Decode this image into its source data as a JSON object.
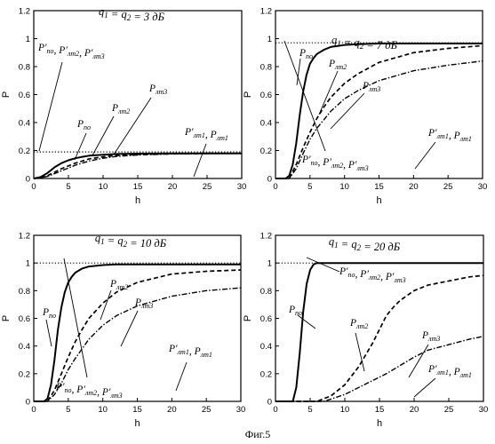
{
  "caption": "Фиг.5",
  "chart_data": [
    {
      "type": "line",
      "title": "q1 = q2 = 3 дБ",
      "xlabel": "h",
      "ylabel": "P",
      "xlim": [
        0,
        30
      ],
      "ylim": [
        0,
        1.2
      ],
      "xticks": [
        "0",
        "5",
        "10",
        "15",
        "20",
        "25",
        "30"
      ],
      "yticks": [
        "0",
        "0.2",
        "0.4",
        "0.6",
        "0.8",
        "1",
        "1.2"
      ],
      "series": [
        {
          "style": "solid",
          "x": [
            0,
            1,
            2,
            3,
            4,
            5,
            6,
            7,
            8,
            10,
            12,
            15,
            20,
            25,
            30
          ],
          "y": [
            0,
            0.01,
            0.04,
            0.08,
            0.11,
            0.13,
            0.145,
            0.155,
            0.163,
            0.17,
            0.175,
            0.178,
            0.18,
            0.18,
            0.18
          ]
        },
        {
          "style": "dashed",
          "x": [
            0,
            1,
            2,
            3,
            4,
            5,
            6,
            7,
            8,
            10,
            12,
            15,
            20,
            25,
            30
          ],
          "y": [
            0,
            0.005,
            0.02,
            0.045,
            0.07,
            0.09,
            0.11,
            0.125,
            0.14,
            0.155,
            0.165,
            0.172,
            0.177,
            0.18,
            0.18
          ]
        },
        {
          "style": "dashdot",
          "x": [
            0,
            1,
            2,
            3,
            4,
            5,
            6,
            7,
            8,
            10,
            12,
            15,
            20,
            25,
            30
          ],
          "y": [
            0,
            0.005,
            0.015,
            0.035,
            0.055,
            0.075,
            0.095,
            0.11,
            0.125,
            0.145,
            0.158,
            0.168,
            0.175,
            0.178,
            0.18
          ]
        },
        {
          "style": "dotted",
          "x": [
            0,
            30
          ],
          "y": [
            0.19,
            0.19
          ]
        }
      ],
      "annotations": [
        {
          "lines": [
            {
              "base": "P",
              "prime": "′",
              "sub": "по"
            },
            {
              "sep": ", "
            },
            {
              "base": "P",
              "prime": "′",
              "sub": "лт2"
            },
            {
              "sep": ", "
            },
            {
              "base": "P",
              "prime": "′",
              "sub": "лт3"
            }
          ]
        },
        {
          "lines": [
            {
              "base": "P",
              "sub": "по"
            }
          ]
        },
        {
          "lines": [
            {
              "base": "P",
              "sub": "лт2"
            }
          ]
        },
        {
          "lines": [
            {
              "base": "P",
              "sub": "лт3"
            }
          ]
        },
        {
          "lines": [
            {
              "base": "P",
              "prime": "′",
              "sub": "лт1"
            },
            {
              "sep": ", "
            },
            {
              "base": "P",
              "sub": "лт1"
            }
          ]
        }
      ]
    },
    {
      "type": "line",
      "title": "q1 = q2 = 7 дБ",
      "xlabel": "h",
      "ylabel": "P",
      "xlim": [
        0,
        30
      ],
      "ylim": [
        0,
        1.2
      ],
      "xticks": [
        "0",
        "5",
        "10",
        "15",
        "20",
        "25",
        "30"
      ],
      "yticks": [
        "0",
        "0.2",
        "0.4",
        "0.6",
        "0.8",
        "1",
        "1.2"
      ],
      "series": [
        {
          "style": "solid",
          "x": [
            0,
            1.5,
            2,
            2.5,
            3,
            3.5,
            4,
            4.5,
            5,
            5.5,
            6,
            7,
            8,
            10,
            12,
            15,
            20,
            30
          ],
          "y": [
            0,
            0,
            0.02,
            0.1,
            0.25,
            0.45,
            0.62,
            0.74,
            0.82,
            0.86,
            0.89,
            0.92,
            0.94,
            0.955,
            0.96,
            0.965,
            0.965,
            0.965
          ]
        },
        {
          "style": "dashed",
          "x": [
            0,
            2,
            3,
            4,
            5,
            6,
            7,
            8,
            10,
            12,
            15,
            20,
            25,
            30
          ],
          "y": [
            0,
            0,
            0.1,
            0.22,
            0.33,
            0.43,
            0.51,
            0.58,
            0.68,
            0.75,
            0.83,
            0.9,
            0.93,
            0.95
          ]
        },
        {
          "style": "dashdot",
          "x": [
            0,
            2,
            3,
            4,
            5,
            6,
            7,
            8,
            10,
            12,
            15,
            20,
            25,
            30
          ],
          "y": [
            0,
            0,
            0.07,
            0.18,
            0.28,
            0.36,
            0.42,
            0.48,
            0.57,
            0.63,
            0.7,
            0.77,
            0.81,
            0.84
          ]
        },
        {
          "style": "dotted",
          "x": [
            0,
            30
          ],
          "y": [
            0.97,
            0.97
          ]
        }
      ],
      "annotations": [
        {
          "lines": [
            {
              "base": "P",
              "sub": "по"
            }
          ]
        },
        {
          "lines": [
            {
              "base": "P",
              "sub": "лт2"
            }
          ]
        },
        {
          "lines": [
            {
              "base": "P",
              "sub": "лт3"
            }
          ]
        },
        {
          "lines": [
            {
              "base": "P",
              "prime": "′",
              "sub": "по"
            },
            {
              "sep": ", "
            },
            {
              "base": "P",
              "prime": "′",
              "sub": "лт2"
            },
            {
              "sep": ", "
            },
            {
              "base": "P",
              "prime": "′",
              "sub": "лт3"
            }
          ]
        },
        {
          "lines": [
            {
              "base": "P",
              "prime": "′",
              "sub": "лт1"
            },
            {
              "sep": ", "
            },
            {
              "base": "P",
              "sub": "лт1"
            }
          ]
        }
      ]
    },
    {
      "type": "line",
      "title": "q1 = q2 = 10 дБ",
      "xlabel": "h",
      "ylabel": "P",
      "xlim": [
        0,
        30
      ],
      "ylim": [
        0,
        1.2
      ],
      "xticks": [
        "0",
        "5",
        "10",
        "15",
        "20",
        "25",
        "30"
      ],
      "yticks": [
        "0",
        "0.2",
        "0.4",
        "0.6",
        "0.8",
        "1",
        "1.2"
      ],
      "series": [
        {
          "style": "solid",
          "x": [
            0,
            1.5,
            2,
            2.5,
            3,
            3.5,
            4,
            4.5,
            5,
            5.5,
            6,
            7,
            8,
            10,
            12,
            15,
            20,
            30
          ],
          "y": [
            0,
            0,
            0.02,
            0.12,
            0.3,
            0.52,
            0.68,
            0.79,
            0.86,
            0.9,
            0.93,
            0.96,
            0.975,
            0.985,
            0.99,
            0.99,
            0.99,
            0.99
          ]
        },
        {
          "style": "dashed",
          "x": [
            0,
            2,
            3,
            4,
            5,
            6,
            7,
            8,
            10,
            12,
            15,
            20,
            25,
            30
          ],
          "y": [
            0,
            0,
            0.08,
            0.2,
            0.32,
            0.43,
            0.52,
            0.6,
            0.71,
            0.79,
            0.86,
            0.92,
            0.94,
            0.95
          ]
        },
        {
          "style": "dashdot",
          "x": [
            0,
            2,
            3,
            4,
            5,
            6,
            7,
            8,
            10,
            12,
            15,
            20,
            25,
            30
          ],
          "y": [
            0,
            0,
            0.05,
            0.13,
            0.23,
            0.31,
            0.38,
            0.45,
            0.55,
            0.62,
            0.69,
            0.76,
            0.8,
            0.82
          ]
        },
        {
          "style": "dotted",
          "x": [
            0,
            30
          ],
          "y": [
            1.0,
            1.0
          ]
        }
      ],
      "annotations": [
        {
          "lines": [
            {
              "base": "P",
              "sub": "лт2"
            }
          ]
        },
        {
          "lines": [
            {
              "base": "P",
              "sub": "лт3"
            }
          ]
        },
        {
          "lines": [
            {
              "base": "P",
              "sub": "по"
            }
          ]
        },
        {
          "lines": [
            {
              "base": "P",
              "prime": "′",
              "sub": "по"
            },
            {
              "sep": ", "
            },
            {
              "base": "P",
              "prime": "′",
              "sub": "лт2"
            },
            {
              "sep": ", "
            },
            {
              "base": "P",
              "prime": "′",
              "sub": "лт3"
            }
          ]
        },
        {
          "lines": [
            {
              "base": "P",
              "prime": "′",
              "sub": "лт1"
            },
            {
              "sep": ", "
            },
            {
              "base": "P",
              "sub": "лт1"
            }
          ]
        }
      ]
    },
    {
      "type": "line",
      "title": "q1 = q2 = 20 дБ",
      "xlabel": "h",
      "ylabel": "P",
      "xlim": [
        0,
        30
      ],
      "ylim": [
        0,
        1.2
      ],
      "xticks": [
        "0",
        "5",
        "10",
        "15",
        "20",
        "25",
        "30"
      ],
      "yticks": [
        "0",
        "0.2",
        "0.4",
        "0.6",
        "0.8",
        "1",
        "1.2"
      ],
      "series": [
        {
          "style": "solid",
          "x": [
            0,
            2.5,
            3,
            3.5,
            4,
            4.5,
            5,
            5.5,
            6,
            7,
            10,
            20,
            30
          ],
          "y": [
            0,
            0,
            0.1,
            0.35,
            0.65,
            0.85,
            0.95,
            0.99,
            1.0,
            1.0,
            1.0,
            1.0,
            1.0
          ]
        },
        {
          "style": "dashed",
          "x": [
            0,
            6,
            8,
            10,
            12,
            14,
            15,
            16,
            17,
            18,
            20,
            22,
            25,
            28,
            30
          ],
          "y": [
            0,
            0,
            0.04,
            0.12,
            0.25,
            0.42,
            0.52,
            0.62,
            0.68,
            0.73,
            0.8,
            0.84,
            0.87,
            0.9,
            0.91
          ]
        },
        {
          "style": "dashdot",
          "x": [
            0,
            7,
            10,
            12,
            14,
            16,
            18,
            20,
            22,
            25,
            28,
            30
          ],
          "y": [
            0,
            0,
            0.05,
            0.1,
            0.15,
            0.2,
            0.26,
            0.32,
            0.37,
            0.41,
            0.45,
            0.47
          ]
        },
        {
          "style": "dotted",
          "x": [
            0,
            30
          ],
          "y": [
            1.0,
            1.0
          ]
        }
      ],
      "annotations": [
        {
          "lines": [
            {
              "base": "P",
              "prime": "′",
              "sub": "по"
            },
            {
              "sep": ", "
            },
            {
              "base": "P",
              "prime": "′",
              "sub": "лт2"
            },
            {
              "sep": ", "
            },
            {
              "base": "P",
              "prime": "′",
              "sub": "лт3"
            }
          ]
        },
        {
          "lines": [
            {
              "base": "P",
              "sub": "по"
            }
          ]
        },
        {
          "lines": [
            {
              "base": "P",
              "sub": "лт2"
            }
          ]
        },
        {
          "lines": [
            {
              "base": "P",
              "sub": "лт3"
            }
          ]
        },
        {
          "lines": [
            {
              "base": "P",
              "prime": "′",
              "sub": "лт1"
            },
            {
              "sep": ", "
            },
            {
              "base": "P",
              "sub": "лт1"
            }
          ]
        }
      ]
    }
  ]
}
